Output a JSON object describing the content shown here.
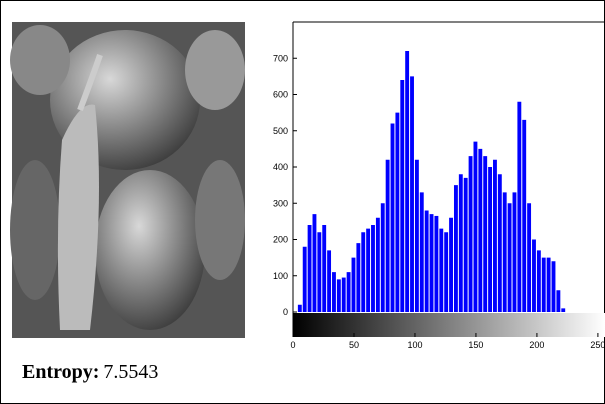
{
  "chart_data": {
    "type": "histogram",
    "entropy_label": "Entropy:",
    "entropy_value": "7.5543",
    "bins": [
      0,
      4,
      8,
      12,
      16,
      20,
      24,
      28,
      32,
      36,
      40,
      44,
      48,
      52,
      56,
      60,
      64,
      68,
      72,
      76,
      80,
      84,
      88,
      92,
      96,
      100,
      104,
      108,
      112,
      116,
      120,
      124,
      128,
      132,
      136,
      140,
      144,
      148,
      152,
      156,
      160,
      164,
      168,
      172,
      176,
      180,
      184,
      188,
      192,
      196,
      200,
      204,
      208,
      212,
      216,
      220,
      224,
      228,
      232,
      236,
      240,
      244,
      248,
      252,
      256
    ],
    "values": [
      0,
      20,
      180,
      240,
      270,
      220,
      240,
      170,
      110,
      90,
      95,
      110,
      150,
      190,
      220,
      230,
      240,
      260,
      300,
      420,
      520,
      550,
      640,
      720,
      650,
      420,
      330,
      280,
      270,
      265,
      230,
      220,
      260,
      350,
      380,
      370,
      430,
      470,
      450,
      430,
      400,
      420,
      380,
      330,
      300,
      330,
      580,
      530,
      300,
      200,
      170,
      150,
      150,
      140,
      60,
      10,
      0,
      0,
      0,
      0,
      0,
      0,
      0,
      0
    ],
    "color": "#0000ff",
    "xlim": [
      0,
      255
    ],
    "xticks": [
      0,
      50,
      100,
      150,
      200,
      250
    ],
    "ylim": [
      0,
      800
    ],
    "yticks": [
      0,
      100,
      200,
      300,
      400,
      500,
      600,
      700
    ]
  }
}
